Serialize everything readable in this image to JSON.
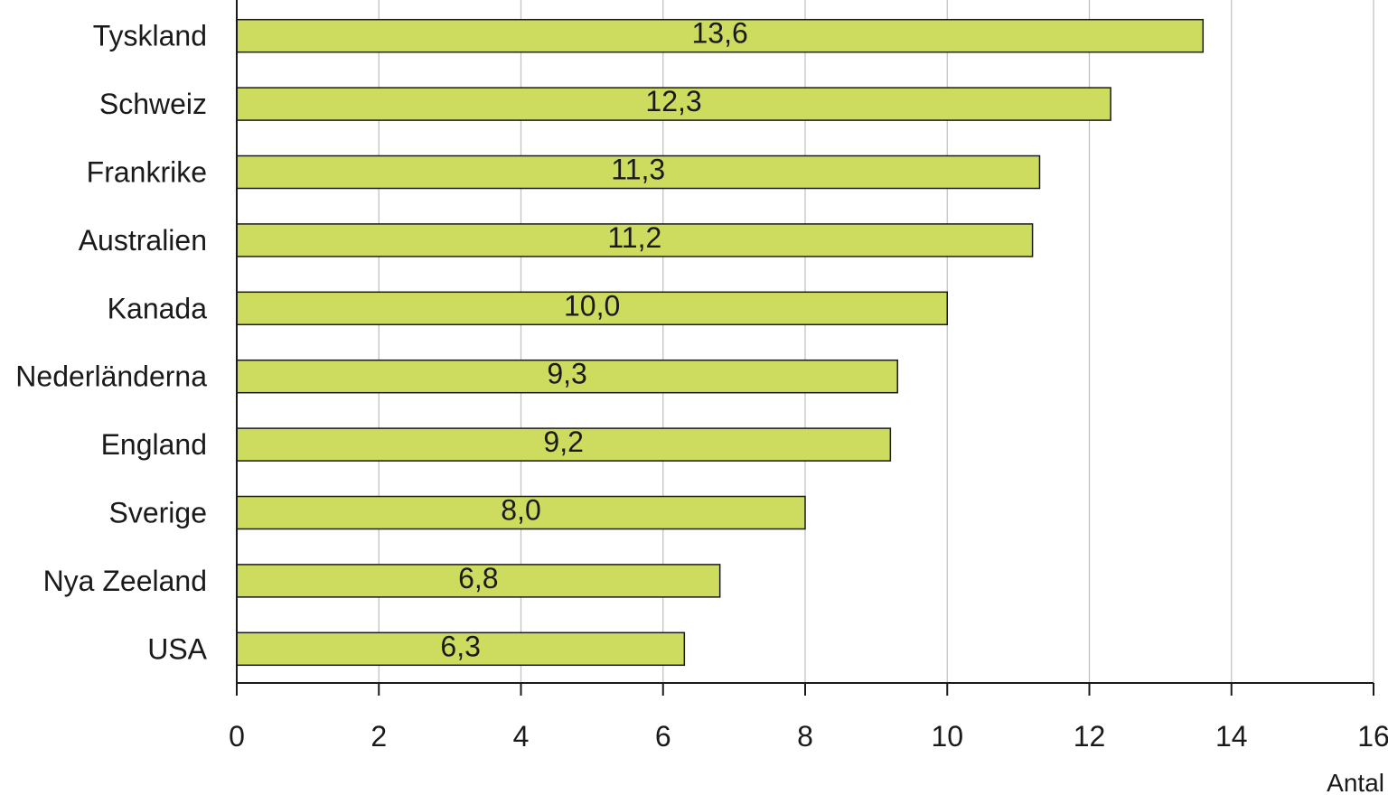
{
  "chart_data": {
    "type": "bar",
    "orientation": "horizontal",
    "categories": [
      "Tyskland",
      "Schweiz",
      "Frankrike",
      "Australien",
      "Kanada",
      "Nederländerna",
      "England",
      "Sverige",
      "Nya Zeeland",
      "USA"
    ],
    "values": [
      13.6,
      12.3,
      11.3,
      11.2,
      10.0,
      9.3,
      9.2,
      8.0,
      6.8,
      6.3
    ],
    "data_labels": [
      "13,6",
      "12,3",
      "11,3",
      "11,2",
      "10,0",
      "9,3",
      "9,2",
      "8,0",
      "6,8",
      "6,3"
    ],
    "xlim": [
      0,
      16
    ],
    "xticks": [
      0,
      2,
      4,
      6,
      8,
      10,
      12,
      14,
      16
    ],
    "xtick_labels": [
      "0",
      "2",
      "4",
      "6",
      "8",
      "10",
      "12",
      "14",
      "16"
    ],
    "xlabel": "Antal",
    "title": "",
    "grid": "vertical",
    "legend": "none",
    "colors": {
      "bar_fill": "#cddc5f",
      "bar_stroke": "#1a1a1a",
      "grid": "#bfbfbf",
      "axis": "#1a1a1a"
    }
  }
}
